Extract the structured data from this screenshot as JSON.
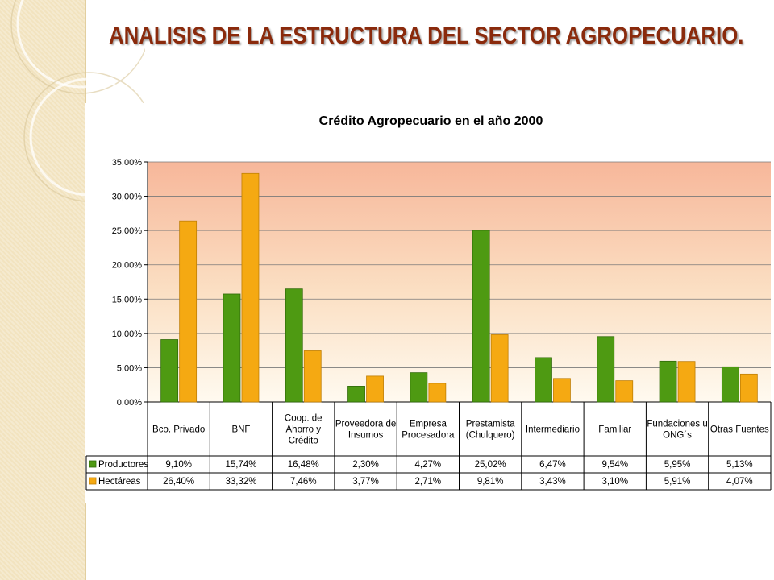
{
  "slide": {
    "title": "ANALISIS  DE LA ESTRUCTURA DEL SECTOR AGROPECUARIO."
  },
  "theme": {
    "strip_color": "#f2e3bf",
    "title_color": "#8a2a0c"
  },
  "chart_data": {
    "type": "bar",
    "title": "Crédito Agropecuario en el año 2000",
    "xlabel": "",
    "ylabel": "",
    "ylim": [
      0,
      35
    ],
    "y_ticks": [
      "0,00%",
      "5,00%",
      "10,00%",
      "15,00%",
      "20,00%",
      "25,00%",
      "30,00%",
      "35,00%"
    ],
    "grid": true,
    "legend_placement": "data-table-left",
    "categories": [
      [
        "Bco. Privado"
      ],
      [
        "BNF"
      ],
      [
        "Coop. de",
        "Ahorro y",
        "Crédito"
      ],
      [
        "Proveedora de",
        "Insumos"
      ],
      [
        "Empresa",
        "Procesadora"
      ],
      [
        "Prestamista",
        "(Chulquero)"
      ],
      [
        "Intermediario"
      ],
      [
        "Familiar"
      ],
      [
        "Fundaciones u",
        "ONG´s"
      ],
      [
        "Otras Fuentes"
      ]
    ],
    "series": [
      {
        "name": "Productores",
        "color": "#4e9a12",
        "values": [
          9.1,
          15.74,
          16.48,
          2.3,
          4.27,
          25.02,
          6.47,
          9.54,
          5.95,
          5.13
        ],
        "labels": [
          "9,10%",
          "15,74%",
          "16,48%",
          "2,30%",
          "4,27%",
          "25,02%",
          "6,47%",
          "9,54%",
          "5,95%",
          "5,13%"
        ]
      },
      {
        "name": "Hectáreas",
        "color": "#f5a912",
        "values": [
          26.4,
          33.32,
          7.46,
          3.77,
          2.71,
          9.81,
          3.43,
          3.1,
          5.91,
          4.07
        ],
        "labels": [
          "26,40%",
          "33,32%",
          "7,46%",
          "3,77%",
          "2,71%",
          "9,81%",
          "3,43%",
          "3,10%",
          "5,91%",
          "4,07%"
        ]
      }
    ]
  }
}
